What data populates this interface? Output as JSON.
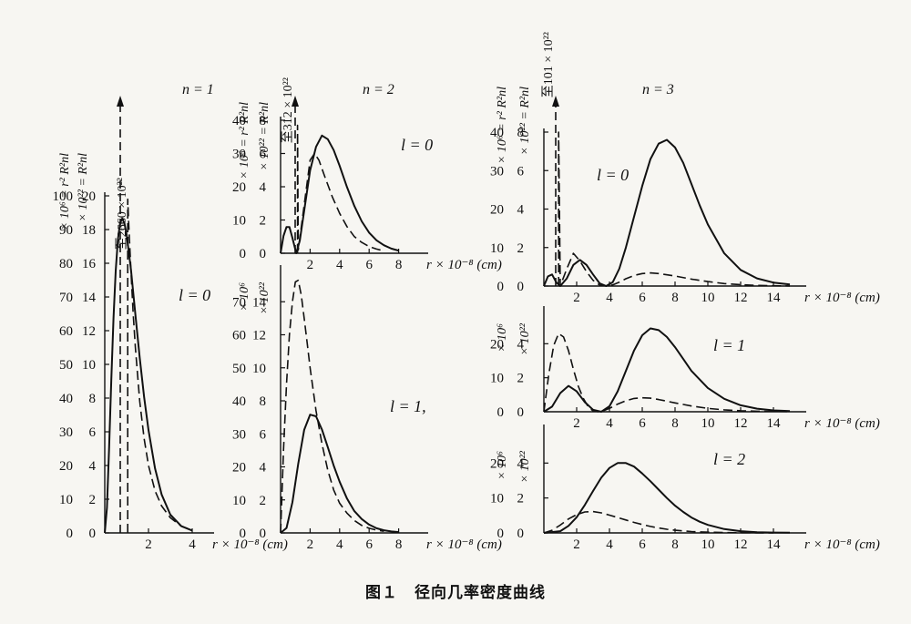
{
  "caption": "图１　径向几率密度曲线",
  "chart_data": [
    {
      "id": "p10",
      "type": "line",
      "n_label": "n = 1",
      "l_label": "l = 0",
      "ylabel_outer": "× 10⁶ = r² R²nl",
      "ylabel_inner": "× 10²² = R²nl",
      "arrow_label": "至2660 × 10²²",
      "xlabel": "r × 10⁻⁸ (cm)",
      "x_ticks": [
        {
          "v": 2,
          "t": "2"
        },
        {
          "v": 4,
          "t": "4"
        }
      ],
      "xlim": [
        0,
        5
      ],
      "ylim_inner": [
        0,
        20
      ],
      "ylim_outer": [
        0,
        100
      ],
      "y_ticks_inner": [
        "0",
        "2",
        "4",
        "6",
        "8",
        "10",
        "12",
        "14",
        "16",
        "18",
        "20"
      ],
      "y_ticks_outer": [
        "0",
        "10",
        "20",
        "30",
        "40",
        "50",
        "60",
        "70",
        "80",
        "90",
        "100"
      ],
      "series": [
        {
          "style": "solid",
          "axis": "outer",
          "x": [
            0,
            0.1,
            0.2,
            0.3,
            0.4,
            0.5,
            0.6,
            0.7,
            0.8,
            0.9,
            1.0,
            1.2,
            1.4,
            1.6,
            1.8,
            2.0,
            2.3,
            2.6,
            3.0,
            3.5,
            4.0
          ],
          "y": [
            0,
            7.5,
            25.5,
            45.6,
            63.7,
            77.7,
            87.0,
            91.9,
            93.3,
            91.9,
            88.5,
            78.0,
            64.8,
            51.9,
            40.3,
            30.5,
            19.1,
            11.4,
            5.4,
            2.0,
            0.7
          ]
        },
        {
          "style": "dashed",
          "axis": "inner",
          "x": [
            1.05,
            1.05,
            1.1,
            1.2,
            1.3,
            1.4,
            1.6,
            1.8,
            2.0,
            2.3,
            2.6,
            3.0,
            3.5,
            4.0
          ],
          "y": [
            0,
            19.8,
            18.2,
            15.5,
            13.0,
            11.0,
            7.8,
            5.6,
            4.0,
            2.5,
            1.6,
            0.9,
            0.4,
            0.15
          ]
        }
      ]
    },
    {
      "id": "p20",
      "type": "line",
      "n_label": "n = 2",
      "l_label": "l = 0",
      "ylabel_outer": "× 10⁶ = r² R²nl",
      "ylabel_inner": "× 10²² = R²nl",
      "arrow_label": "至312 × 10²²",
      "xlabel": "r × 10⁻⁸ (cm)",
      "x_ticks": [
        {
          "v": 2,
          "t": "2"
        },
        {
          "v": 4,
          "t": "4"
        },
        {
          "v": 6,
          "t": "6"
        },
        {
          "v": 8,
          "t": "8"
        }
      ],
      "xlim": [
        0,
        10
      ],
      "ylim_inner": [
        0,
        8
      ],
      "ylim_outer": [
        0,
        40
      ],
      "y_ticks_inner": [
        "0",
        "2",
        "4",
        "6",
        "8"
      ],
      "y_ticks_outer": [
        "0",
        "10",
        "20",
        "30",
        "40"
      ],
      "series": [
        {
          "style": "solid",
          "axis": "outer",
          "x": [
            0,
            0.2,
            0.4,
            0.6,
            0.8,
            1.06,
            1.3,
            1.6,
            2.0,
            2.4,
            2.8,
            3.2,
            3.6,
            4.0,
            4.5,
            5.0,
            5.5,
            6.0,
            6.5,
            7.0,
            7.5,
            8.0
          ],
          "y": [
            0,
            5.2,
            7.9,
            7.9,
            4.6,
            0,
            3.8,
            12.8,
            24.9,
            32.0,
            35.4,
            34.3,
            31.0,
            26.3,
            19.9,
            14.2,
            9.6,
            6.2,
            3.9,
            2.4,
            1.4,
            0.8
          ]
        },
        {
          "style": "dashed",
          "axis": "inner",
          "x": [
            1.15,
            1.15,
            1.2,
            1.6,
            2.0,
            2.3,
            2.6,
            3.0,
            3.5,
            4.0,
            4.5,
            5.0,
            5.5,
            6.0,
            6.5,
            7.0
          ],
          "y": [
            0,
            7.7,
            0.2,
            2.9,
            5.6,
            6.0,
            5.6,
            4.6,
            3.4,
            2.4,
            1.6,
            1.0,
            0.65,
            0.4,
            0.25,
            0.15
          ]
        }
      ]
    },
    {
      "id": "p21",
      "type": "line",
      "l_label": "l = 1,",
      "ylabel_outer": "× 10⁶",
      "ylabel_inner": "× 10²²",
      "xlabel": "r × 10⁻⁸ (cm)",
      "x_ticks": [
        {
          "v": 2,
          "t": "2"
        },
        {
          "v": 4,
          "t": "4"
        },
        {
          "v": 6,
          "t": "6"
        },
        {
          "v": 8,
          "t": "8"
        }
      ],
      "xlim": [
        0,
        10
      ],
      "ylim_inner": [
        0,
        16
      ],
      "ylim_outer": [
        0,
        80
      ],
      "y_ticks_inner": [
        "0",
        "2",
        "4",
        "6",
        "8",
        "10",
        "12",
        "14"
      ],
      "y_ticks_outer": [
        "0",
        "10",
        "20",
        "30",
        "40",
        "50",
        "60",
        "70"
      ],
      "series": [
        {
          "style": "solid",
          "axis": "outer",
          "x": [
            0,
            0.4,
            0.8,
            1.2,
            1.6,
            2.0,
            2.4,
            2.8,
            3.2,
            3.6,
            4.0,
            4.5,
            5.0,
            5.5,
            6.0,
            6.5,
            7.0,
            7.5,
            8.0
          ],
          "y": [
            0,
            1.5,
            9.3,
            21.0,
            31.2,
            35.8,
            35.3,
            31.3,
            26.0,
            20.4,
            15.5,
            10.4,
            6.6,
            4.2,
            2.5,
            1.4,
            0.8,
            0.45,
            0.25
          ]
        },
        {
          "style": "dashed",
          "axis": "inner",
          "x": [
            0,
            0.2,
            0.4,
            0.6,
            0.8,
            1.0,
            1.2,
            1.4,
            1.6,
            1.8,
            2.0,
            2.4,
            2.8,
            3.2,
            3.6,
            4.0,
            4.5,
            5.0,
            5.5,
            6.0,
            6.5,
            7.0
          ],
          "y": [
            0,
            5.0,
            9.0,
            12.0,
            14.0,
            15.2,
            15.3,
            14.4,
            13.0,
            11.5,
            10.0,
            7.4,
            5.4,
            3.8,
            2.6,
            1.8,
            1.2,
            0.75,
            0.45,
            0.28,
            0.17,
            0.1
          ]
        }
      ]
    },
    {
      "id": "p30",
      "type": "line",
      "n_label": "n = 3",
      "l_label": "l = 0",
      "ylabel_outer": "× 10⁶ = r² R²nl",
      "ylabel_inner": "× 10²² = R²nl",
      "arrow_label": "至101 × 10²²",
      "xlabel": "r × 10⁻⁸ (cm)",
      "x_ticks": [
        {
          "v": 2,
          "t": "2"
        },
        {
          "v": 4,
          "t": "4"
        },
        {
          "v": 6,
          "t": "6"
        },
        {
          "v": 8,
          "t": "8"
        },
        {
          "v": 10,
          "t": "10"
        },
        {
          "v": 12,
          "t": "12"
        },
        {
          "v": 14,
          "t": "14"
        }
      ],
      "xlim": [
        0,
        16
      ],
      "ylim_inner": [
        0,
        8
      ],
      "ylim_outer": [
        0,
        40
      ],
      "y_ticks_inner": [
        "0",
        "2",
        "4",
        "6",
        "8"
      ],
      "y_ticks_outer": [
        "0",
        "10",
        "20",
        "30",
        "40"
      ],
      "series": [
        {
          "style": "solid",
          "axis": "outer",
          "x": [
            0,
            0.25,
            0.5,
            0.75,
            1.0,
            1.4,
            1.8,
            2.2,
            2.6,
            3.0,
            3.4,
            3.8,
            4.2,
            4.6,
            5.0,
            5.5,
            6.0,
            6.5,
            7.0,
            7.5,
            8.0,
            8.5,
            9.0,
            9.5,
            10.0,
            11.0,
            12.0,
            13.0,
            14.0,
            15.0
          ],
          "y": [
            0,
            2.5,
            3.0,
            1.0,
            0,
            2.0,
            5.5,
            6.8,
            5.5,
            3.0,
            0.7,
            0,
            1.0,
            4.5,
            10.0,
            18.0,
            26.0,
            33.0,
            37.0,
            38.0,
            36.0,
            32.0,
            26.5,
            21.0,
            16.0,
            8.5,
            4.2,
            2.0,
            0.9,
            0.4
          ]
        },
        {
          "style": "dashed",
          "axis": "inner",
          "x": [
            0.9,
            0.9,
            1.0,
            1.4,
            1.8,
            2.2,
            2.6,
            3.0,
            3.4,
            3.8,
            4.2,
            4.6,
            5.0,
            5.5,
            6.0,
            6.5,
            7.0,
            8.0,
            9.0,
            10.0,
            11.0,
            12.0,
            13.0,
            14.0,
            15.0
          ],
          "y": [
            0,
            8,
            0,
            0.9,
            1.7,
            1.3,
            0.75,
            0.3,
            0.05,
            0,
            0.06,
            0.2,
            0.38,
            0.55,
            0.65,
            0.68,
            0.65,
            0.52,
            0.36,
            0.23,
            0.13,
            0.07,
            0.035,
            0.016,
            0.007
          ]
        }
      ]
    },
    {
      "id": "p31",
      "type": "line",
      "l_label": "l = 1",
      "ylabel_outer": "× 10⁶",
      "ylabel_inner": "× 10²²",
      "xlabel": "r × 10⁻⁸ (cm)",
      "x_ticks": [
        {
          "v": 2,
          "t": "2"
        },
        {
          "v": 4,
          "t": "4"
        },
        {
          "v": 6,
          "t": "6"
        },
        {
          "v": 8,
          "t": "8"
        },
        {
          "v": 10,
          "t": "10"
        },
        {
          "v": 12,
          "t": "12"
        },
        {
          "v": 14,
          "t": "14"
        }
      ],
      "xlim": [
        0,
        16
      ],
      "ylim_inner": [
        0,
        6
      ],
      "ylim_outer": [
        0,
        30
      ],
      "y_ticks_inner": [
        "0",
        "2",
        "4"
      ],
      "y_ticks_outer": [
        "0",
        "10",
        "20"
      ],
      "series": [
        {
          "style": "solid",
          "axis": "outer",
          "x": [
            0,
            0.5,
            1.0,
            1.5,
            2.0,
            2.5,
            3.0,
            3.5,
            4.0,
            4.5,
            5.0,
            5.5,
            6.0,
            6.5,
            7.0,
            7.5,
            8.0,
            8.5,
            9.0,
            10.0,
            11.0,
            12.0,
            13.0,
            14.0,
            15.0
          ],
          "y": [
            0,
            1.5,
            5.5,
            7.6,
            6.0,
            2.8,
            0.6,
            0,
            1.6,
            6.0,
            12.0,
            18.0,
            22.5,
            24.5,
            24.0,
            22.0,
            19.0,
            15.5,
            12.0,
            7.0,
            3.8,
            1.9,
            0.9,
            0.4,
            0.2
          ]
        },
        {
          "style": "dashed",
          "axis": "inner",
          "x": [
            0,
            0.3,
            0.6,
            0.9,
            1.2,
            1.5,
            1.8,
            2.1,
            2.4,
            2.7,
            3.0,
            3.3,
            3.6,
            4.0,
            4.5,
            5.0,
            5.5,
            6.0,
            6.5,
            7.0,
            7.5,
            8.0,
            9.0,
            10.0,
            11.0,
            12.0,
            13.0,
            14.0,
            15.0
          ],
          "y": [
            0,
            2.2,
            3.9,
            4.6,
            4.4,
            3.6,
            2.5,
            1.5,
            0.8,
            0.3,
            0.05,
            0,
            0.05,
            0.2,
            0.45,
            0.65,
            0.78,
            0.82,
            0.8,
            0.72,
            0.62,
            0.52,
            0.34,
            0.2,
            0.11,
            0.06,
            0.03,
            0.014,
            0.006
          ]
        }
      ]
    },
    {
      "id": "p32",
      "type": "line",
      "l_label": "l = 2",
      "ylabel_outer": "× 10⁶",
      "ylabel_inner": "× 10²²",
      "xlabel": "r × 10⁻⁸ (cm)",
      "x_ticks": [
        {
          "v": 2,
          "t": "2"
        },
        {
          "v": 4,
          "t": "4"
        },
        {
          "v": 6,
          "t": "6"
        },
        {
          "v": 8,
          "t": "8"
        },
        {
          "v": 10,
          "t": "10"
        },
        {
          "v": 12,
          "t": "12"
        },
        {
          "v": 14,
          "t": "14"
        }
      ],
      "xlim": [
        0,
        16
      ],
      "ylim_inner": [
        0,
        6
      ],
      "ylim_outer": [
        0,
        30
      ],
      "y_ticks_inner": [
        "0",
        "2",
        "4"
      ],
      "y_ticks_outer": [
        "0",
        "10",
        "20"
      ],
      "series": [
        {
          "style": "solid",
          "axis": "outer",
          "x": [
            0,
            1.0,
            1.5,
            2.0,
            2.5,
            3.0,
            3.5,
            4.0,
            4.5,
            5.0,
            5.5,
            6.0,
            6.5,
            7.0,
            7.5,
            8.0,
            8.5,
            9.0,
            9.5,
            10.0,
            11.0,
            12.0,
            13.0,
            14.0,
            15.0
          ],
          "y": [
            0,
            0.5,
            2.0,
            4.5,
            8.0,
            12.0,
            15.8,
            18.6,
            20.0,
            20.0,
            19.0,
            17.0,
            14.8,
            12.4,
            10.0,
            7.8,
            6.0,
            4.4,
            3.2,
            2.3,
            1.1,
            0.5,
            0.22,
            0.1,
            0.04
          ]
        },
        {
          "style": "dashed",
          "axis": "inner",
          "x": [
            0,
            0.5,
            1.0,
            1.5,
            2.0,
            2.5,
            3.0,
            3.5,
            4.0,
            4.5,
            5.0,
            5.5,
            6.0,
            6.5,
            7.0,
            7.5,
            8.0,
            9.0,
            10.0,
            11.0,
            12.0,
            13.0,
            14.0
          ],
          "y": [
            0,
            0.15,
            0.45,
            0.8,
            1.05,
            1.2,
            1.22,
            1.15,
            1.02,
            0.88,
            0.74,
            0.6,
            0.48,
            0.37,
            0.28,
            0.21,
            0.15,
            0.08,
            0.04,
            0.02,
            0.01,
            0.005,
            0.002
          ]
        }
      ]
    }
  ]
}
